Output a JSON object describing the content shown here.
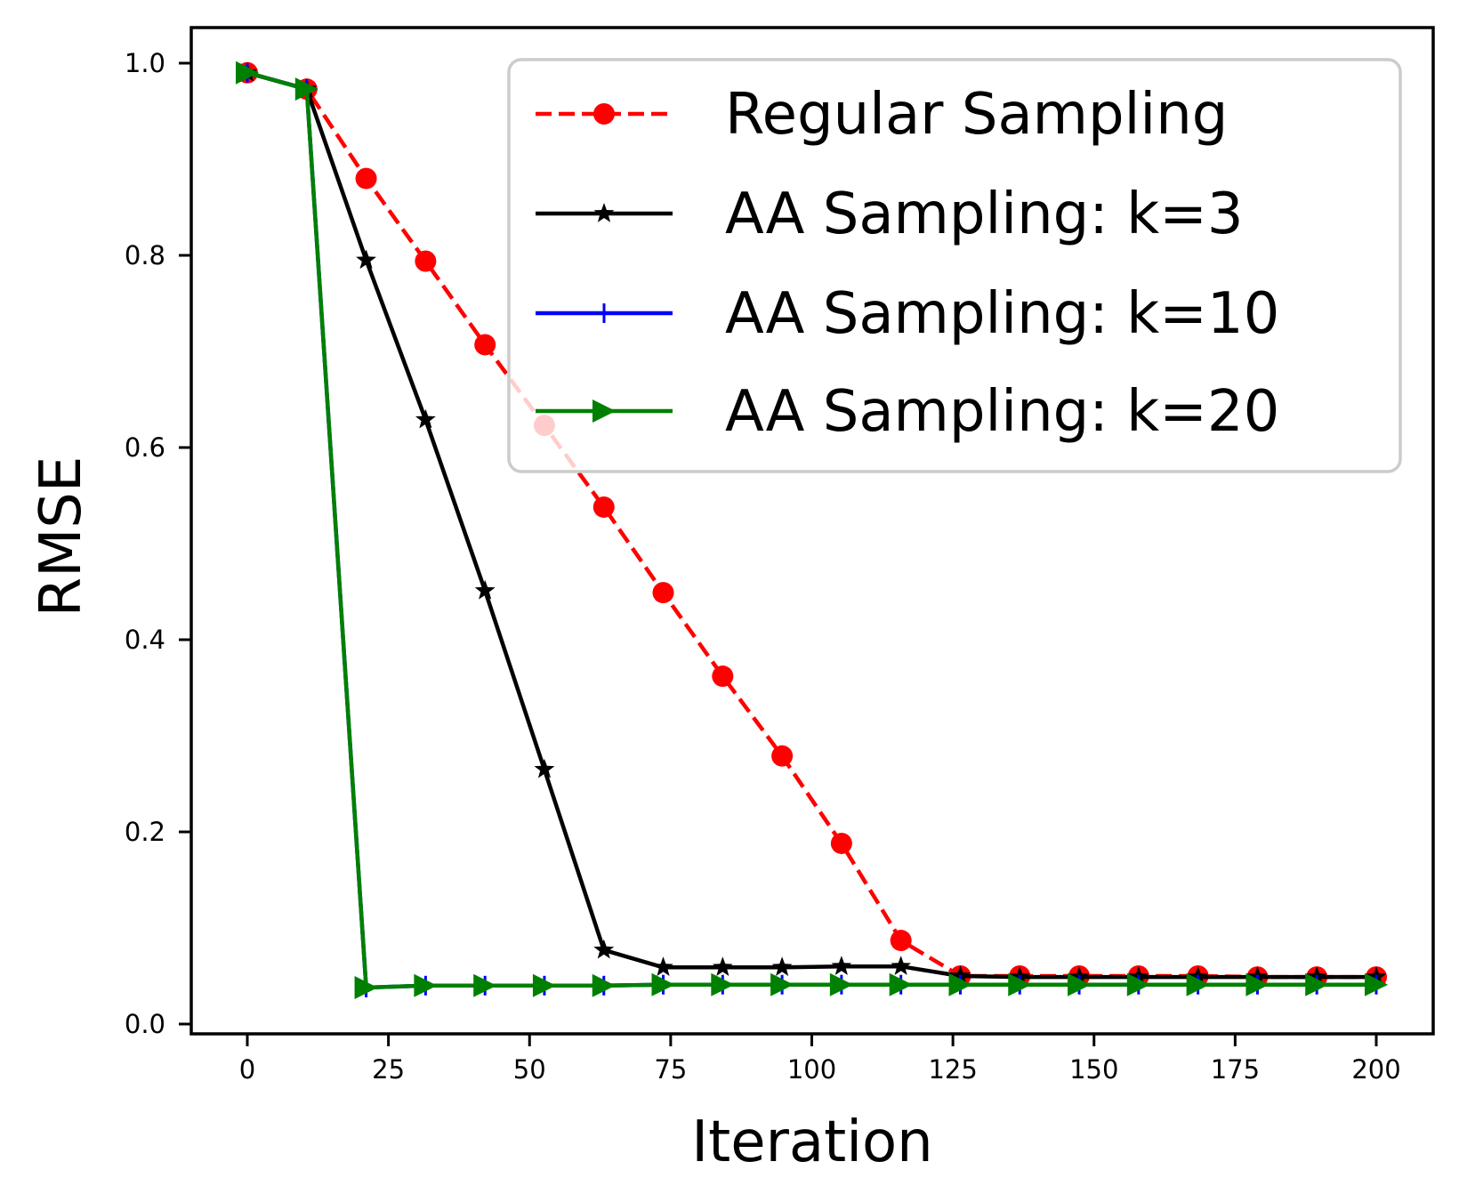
{
  "chart_data": {
    "type": "line",
    "title": "",
    "xlabel": "Iteration",
    "ylabel": "RMSE",
    "xlim": [
      -10,
      210
    ],
    "ylim": [
      -0.01,
      1.04
    ],
    "grid": false,
    "legend_position": "upper right",
    "x_ticks": [
      0,
      25,
      50,
      75,
      100,
      125,
      150,
      175,
      200
    ],
    "x_tick_labels": [
      "0",
      "25",
      "50",
      "75",
      "100",
      "125",
      "150",
      "175",
      "200"
    ],
    "y_ticks": [
      0.0,
      0.2,
      0.4,
      0.6,
      0.8,
      1.0
    ],
    "y_tick_labels": [
      "0.0",
      "0.2",
      "0.4",
      "0.6",
      "0.8",
      "1.0"
    ],
    "x": [
      0,
      10.53,
      21.05,
      31.58,
      42.11,
      52.63,
      63.16,
      73.68,
      84.21,
      94.74,
      105.26,
      115.79,
      126.32,
      136.84,
      147.37,
      157.89,
      168.42,
      178.95,
      189.47,
      200
    ],
    "series": [
      {
        "name": "Regular Sampling",
        "color": "#ff0000",
        "linestyle": "dashed",
        "marker": "circle",
        "values": [
          0.99,
          0.973,
          0.88,
          0.794,
          0.707,
          0.623,
          0.538,
          0.449,
          0.362,
          0.279,
          0.188,
          0.087,
          0.05,
          0.05,
          0.05,
          0.05,
          0.05,
          0.049,
          0.049,
          0.049
        ]
      },
      {
        "name": "AA Sampling: k=3",
        "color": "#000000",
        "linestyle": "solid",
        "marker": "star",
        "values": [
          0.99,
          0.973,
          0.795,
          0.629,
          0.451,
          0.265,
          0.077,
          0.059,
          0.059,
          0.059,
          0.06,
          0.06,
          0.05,
          0.049,
          0.049,
          0.049,
          0.049,
          0.049,
          0.049,
          0.049
        ]
      },
      {
        "name": "AA Sampling: k=10",
        "color": "#0000ff",
        "linestyle": "solid",
        "marker": "plus",
        "values": [
          0.99,
          0.973,
          0.038,
          0.04,
          0.04,
          0.04,
          0.04,
          0.041,
          0.041,
          0.041,
          0.041,
          0.041,
          0.041,
          0.041,
          0.041,
          0.041,
          0.041,
          0.041,
          0.041,
          0.041
        ]
      },
      {
        "name": "AA Sampling: k=20",
        "color": "#008000",
        "linestyle": "solid",
        "marker": "triangle-right",
        "values": [
          0.99,
          0.973,
          0.038,
          0.04,
          0.04,
          0.04,
          0.04,
          0.041,
          0.041,
          0.041,
          0.041,
          0.041,
          0.041,
          0.041,
          0.041,
          0.041,
          0.041,
          0.041,
          0.041,
          0.041
        ]
      }
    ]
  }
}
